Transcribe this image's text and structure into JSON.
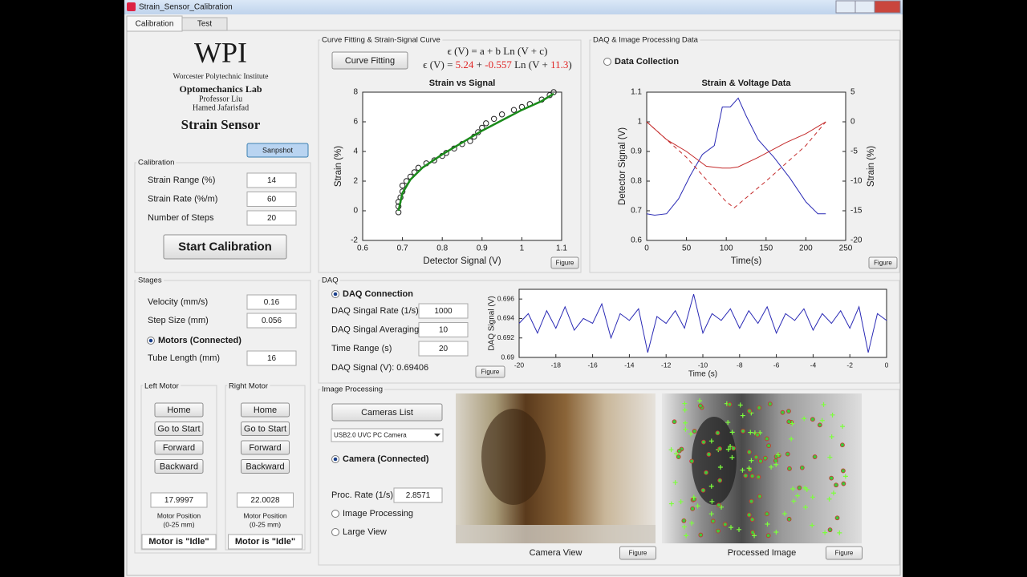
{
  "window": {
    "title": "Strain_Sensor_Calibration",
    "tabs": [
      "Calibration",
      "Test"
    ]
  },
  "header": {
    "logo": "WPI",
    "institute": "Worcester Polytechnic Institute",
    "lab": "Optomechanics Lab",
    "professor": "Professor Liu",
    "author": "Hamed Jafarisfad",
    "app_title": "Strain Sensor",
    "snapshot_button": "Sanpshot"
  },
  "calibration": {
    "title": "Calibration",
    "fields": [
      {
        "label": "Strain Range (%)",
        "value": "14"
      },
      {
        "label": "Strain Rate (%/m)",
        "value": "60"
      },
      {
        "label": "Number of Steps",
        "value": "20"
      }
    ],
    "button": "Start Calibration"
  },
  "stages": {
    "title": "Stages",
    "fields": [
      {
        "label": "Velocity (mm/s)",
        "value": "0.16"
      },
      {
        "label": "Step Size (mm)",
        "value": "0.056"
      }
    ],
    "motors_radio": {
      "label": "Motors (Connected)",
      "checked": true
    },
    "tube": {
      "label": "Tube Length (mm)",
      "value": "16"
    },
    "motors": [
      {
        "title": "Left Motor",
        "buttons": [
          "Home",
          "Go to Start",
          "Forward",
          "Backward"
        ],
        "position": "17.9997",
        "position_label": "Motor Position",
        "range": "(0-25 mm)",
        "status": "Motor is \"Idle\""
      },
      {
        "title": "Right Motor",
        "buttons": [
          "Home",
          "Go to Start",
          "Forward",
          "Backward"
        ],
        "position": "22.0028",
        "position_label": "Motor Position",
        "range": "(0-25 mm)",
        "status": "Motor is \"Idle\""
      }
    ]
  },
  "curve_fitting": {
    "title": "Curve Fitting & Strain-Signal Curve",
    "button": "Curve Fitting",
    "equation": "ϵ (V) = a + b Ln (V + c)",
    "fit": [
      {
        "text": "ϵ (V) = ",
        "color": "#222222"
      },
      {
        "text": "5.24",
        "color": "#e02424"
      },
      {
        "text": " + ",
        "color": "#222222"
      },
      {
        "text": "-0.557",
        "color": "#e02424"
      },
      {
        "text": " Ln (V + ",
        "color": "#222222"
      },
      {
        "text": "11.3",
        "color": "#e02424"
      },
      {
        "text": ")",
        "color": "#222222"
      }
    ],
    "figure_button": "Figure",
    "plot": {
      "title": "Strain vs Signal",
      "xlabel": "Detector Signal (V)",
      "ylabel": "Strain (%)",
      "label_colors": {
        "x": "#2a2ab5",
        "y": "#c42a2a"
      },
      "xlim": [
        0.6,
        1.1
      ],
      "xticks": [
        0.6,
        0.7,
        0.8,
        0.9,
        1,
        1.1
      ],
      "ylim": [
        -2,
        8
      ],
      "yticks": [
        -2,
        0,
        2,
        4,
        6,
        8
      ],
      "series": [
        {
          "type": "scatter",
          "color": "#222222",
          "x": [
            0.69,
            0.69,
            0.69,
            0.695,
            0.7,
            0.7,
            0.71,
            0.72,
            0.73,
            0.74,
            0.76,
            0.78,
            0.8,
            0.81,
            0.83,
            0.85,
            0.87,
            0.88,
            0.89,
            0.9,
            0.91,
            0.93,
            0.95,
            0.98,
            1.0,
            1.02,
            1.05,
            1.07,
            1.08
          ],
          "values": [
            -0.1,
            0.3,
            0.6,
            0.9,
            1.3,
            1.7,
            2.0,
            2.3,
            2.6,
            2.9,
            3.2,
            3.4,
            3.7,
            3.9,
            4.2,
            4.5,
            4.7,
            5.0,
            5.3,
            5.6,
            5.9,
            6.2,
            6.5,
            6.8,
            7.0,
            7.2,
            7.5,
            7.8,
            8.0
          ]
        },
        {
          "type": "line",
          "color": "#1a8a1a",
          "line_width": 2.5,
          "x": [
            0.69,
            0.7,
            0.72,
            0.75,
            0.8,
            0.85,
            0.9,
            0.95,
            1.0,
            1.05,
            1.08
          ],
          "values": [
            0,
            1.2,
            2.1,
            2.9,
            3.8,
            4.6,
            5.4,
            6.1,
            6.8,
            7.4,
            7.9
          ]
        }
      ]
    }
  },
  "daq_data": {
    "title": "DAQ & Image Processing Data",
    "radio": {
      "label": "Data Collection",
      "checked": false
    },
    "figure_button": "Figure",
    "plot": {
      "title": "Strain & Voltage Data",
      "xlabel": "Time(s)",
      "ylabel": "Detector Signal (V)",
      "y2label": "Strain (%)",
      "label_colors": {
        "x": "#262626",
        "y": "#2a2ab5",
        "y2": "#c42a2a"
      },
      "xlim": [
        0,
        250
      ],
      "xticks": [
        0,
        50,
        100,
        150,
        200,
        250
      ],
      "ylim": [
        0.6,
        1.1
      ],
      "yticks": [
        0.6,
        0.7,
        0.8,
        0.9,
        1,
        1.1
      ],
      "y2lim": [
        -20,
        5
      ],
      "y2ticks": [
        -20,
        -15,
        -10,
        -5,
        0,
        5
      ],
      "series": [
        {
          "type": "line",
          "color": "#2a2ab5",
          "x": [
            0,
            10,
            25,
            40,
            55,
            70,
            85,
            95,
            105,
            115,
            125,
            140,
            160,
            180,
            200,
            215,
            225
          ],
          "values": [
            0.69,
            0.685,
            0.69,
            0.74,
            0.82,
            0.89,
            0.92,
            1.05,
            1.05,
            1.08,
            1.02,
            0.94,
            0.88,
            0.81,
            0.73,
            0.69,
            0.69
          ]
        },
        {
          "type": "line",
          "axis": "y2",
          "color": "#c42a2a",
          "x": [
            0,
            25,
            50,
            75,
            95,
            105,
            115,
            140,
            175,
            200,
            225
          ],
          "values": [
            0,
            -3,
            -5,
            -7.5,
            -7.8,
            -7.8,
            -7.6,
            -6,
            -3.5,
            -2,
            0
          ]
        },
        {
          "type": "line",
          "axis": "y2",
          "color": "#c42a2a",
          "dash": true,
          "x": [
            0,
            50,
            100,
            110,
            150,
            200,
            225
          ],
          "values": [
            0,
            -6,
            -13.5,
            -14.5,
            -10,
            -4,
            0
          ]
        }
      ]
    }
  },
  "daq": {
    "title": "DAQ",
    "radio": {
      "label": "DAQ Connection",
      "checked": true
    },
    "fields": [
      {
        "label": "DAQ Singal Rate (1/s)",
        "value": "1000"
      },
      {
        "label": "DAQ Singal Averaging",
        "value": "10"
      },
      {
        "label": "Time Range (s)",
        "value": "20"
      }
    ],
    "signal": "DAQ Signal (V): 0.69406",
    "figure_button": "Figure",
    "plot": {
      "xlabel": "Time (s)",
      "ylabel": "DAQ Signal (V)",
      "label_colors": {},
      "xlim": [
        -20,
        0
      ],
      "xticks": [
        -20,
        -18,
        -16,
        -14,
        -12,
        -10,
        -8,
        -6,
        -4,
        -2,
        0
      ],
      "ylim": [
        0.69,
        0.697
      ],
      "yticks": [
        0.69,
        0.692,
        0.694,
        0.696
      ],
      "series": [
        {
          "type": "line",
          "color": "#2a2ab5",
          "x": [
            -20,
            -19.5,
            -19,
            -18.5,
            -18,
            -17.5,
            -17,
            -16.5,
            -16,
            -15.5,
            -15,
            -14.5,
            -14,
            -13.5,
            -13,
            -12.5,
            -12,
            -11.5,
            -11,
            -10.5,
            -10,
            -9.5,
            -9,
            -8.5,
            -8,
            -7.5,
            -7,
            -6.5,
            -6,
            -5.5,
            -5,
            -4.5,
            -4,
            -3.5,
            -3,
            -2.5,
            -2,
            -1.5,
            -1,
            -0.5,
            0
          ],
          "values": [
            0.6935,
            0.6945,
            0.6925,
            0.6948,
            0.693,
            0.6952,
            0.6928,
            0.694,
            0.6935,
            0.6955,
            0.692,
            0.6945,
            0.6938,
            0.695,
            0.6905,
            0.6942,
            0.6935,
            0.6948,
            0.693,
            0.6965,
            0.6925,
            0.6945,
            0.6938,
            0.695,
            0.693,
            0.6948,
            0.6935,
            0.6952,
            0.6925,
            0.6945,
            0.6938,
            0.695,
            0.6928,
            0.6945,
            0.6935,
            0.6948,
            0.693,
            0.6952,
            0.6905,
            0.6945,
            0.6938
          ]
        }
      ]
    }
  },
  "image_processing": {
    "title": "Image Processing",
    "button": "Cameras List",
    "camera_select": "USB2.0 UVC PC Camera",
    "camera_radio": {
      "label": "Camera (Connected)",
      "checked": true
    },
    "proc_rate": {
      "label": "Proc. Rate (1/s)",
      "value": "2.8571"
    },
    "options": [
      {
        "label": "Image Processing",
        "checked": false
      },
      {
        "label": "Large View",
        "checked": false
      }
    ],
    "captions": [
      "Camera View",
      "Processed Image"
    ],
    "figure_buttons": [
      "Figure",
      "Figure"
    ]
  }
}
